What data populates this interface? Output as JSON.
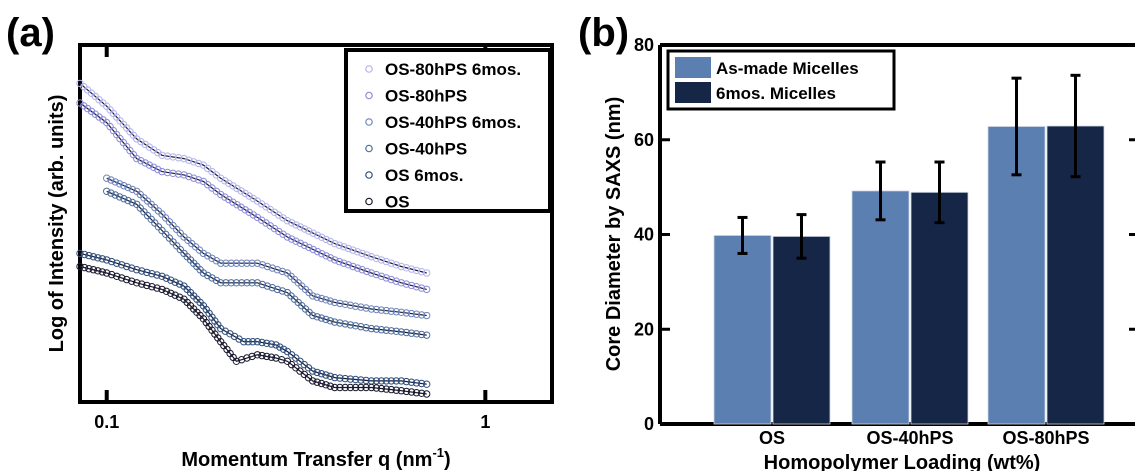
{
  "chart_data": [
    {
      "panel": "(a)",
      "type": "scatter",
      "xlabel": "Momentum Transfer q (nm",
      "xlabel_sup": "-1",
      "xlabel_close": ")",
      "ylabel": "Log of Intensity (arb. units)",
      "xscale": "log",
      "xlim": [
        0.085,
        1.5
      ],
      "ylim": [
        0,
        1
      ],
      "yticks_shown": false,
      "xticks": [
        {
          "value": 0.1,
          "label": "0.1"
        },
        {
          "value": 1,
          "label": "1"
        }
      ],
      "legend_placement": "top-right",
      "fit_line_color": "#1a1a2e",
      "series": [
        {
          "name": "OS-80hPS 6mos.",
          "color": "#b3b3ee",
          "x": [
            0.085,
            0.1,
            0.12,
            0.14,
            0.16,
            0.18,
            0.2,
            0.25,
            0.3,
            0.4,
            0.5,
            0.6,
            0.7
          ],
          "y": [
            0.95,
            0.88,
            0.78,
            0.73,
            0.72,
            0.7,
            0.66,
            0.59,
            0.53,
            0.46,
            0.42,
            0.39,
            0.37
          ]
        },
        {
          "name": "OS-80hPS",
          "color": "#8c8cdc",
          "x": [
            0.085,
            0.1,
            0.12,
            0.14,
            0.16,
            0.18,
            0.2,
            0.25,
            0.3,
            0.4,
            0.5,
            0.6,
            0.7
          ],
          "y": [
            0.89,
            0.83,
            0.72,
            0.68,
            0.67,
            0.65,
            0.61,
            0.54,
            0.48,
            0.41,
            0.37,
            0.34,
            0.32
          ]
        },
        {
          "name": "OS-40hPS 6mos.",
          "color": "#6f86bd",
          "x": [
            0.1,
            0.12,
            0.14,
            0.16,
            0.18,
            0.2,
            0.25,
            0.3,
            0.35,
            0.4,
            0.5,
            0.6,
            0.7
          ],
          "y": [
            0.66,
            0.62,
            0.55,
            0.48,
            0.43,
            0.4,
            0.4,
            0.37,
            0.3,
            0.28,
            0.26,
            0.25,
            0.24
          ]
        },
        {
          "name": "OS-40hPS",
          "color": "#4f6f9f",
          "x": [
            0.1,
            0.12,
            0.14,
            0.16,
            0.18,
            0.2,
            0.25,
            0.3,
            0.35,
            0.4,
            0.5,
            0.6,
            0.7
          ],
          "y": [
            0.62,
            0.58,
            0.5,
            0.43,
            0.37,
            0.34,
            0.34,
            0.31,
            0.24,
            0.22,
            0.2,
            0.19,
            0.18
          ]
        },
        {
          "name": "OS 6mos.",
          "color": "#2f4f7f",
          "x": [
            0.085,
            0.1,
            0.12,
            0.14,
            0.16,
            0.18,
            0.2,
            0.23,
            0.25,
            0.28,
            0.3,
            0.35,
            0.4,
            0.5,
            0.6,
            0.7
          ],
          "y": [
            0.43,
            0.41,
            0.38,
            0.36,
            0.33,
            0.27,
            0.2,
            0.16,
            0.16,
            0.15,
            0.13,
            0.07,
            0.05,
            0.04,
            0.04,
            0.03
          ]
        },
        {
          "name": "OS",
          "color": "#1a1a2e",
          "x": [
            0.085,
            0.1,
            0.12,
            0.14,
            0.16,
            0.18,
            0.2,
            0.22,
            0.25,
            0.28,
            0.3,
            0.35,
            0.4,
            0.5,
            0.6,
            0.7
          ],
          "y": [
            0.39,
            0.37,
            0.34,
            0.32,
            0.29,
            0.23,
            0.16,
            0.1,
            0.12,
            0.11,
            0.1,
            0.04,
            0.02,
            0.02,
            0.01,
            0.0
          ]
        }
      ]
    },
    {
      "panel": "(b)",
      "type": "bar",
      "xlabel": "Homopolymer Loading (wt%)",
      "ylabel": "Core Diameter by SAXS (nm)",
      "ylim": [
        0,
        80
      ],
      "yticks": [
        0,
        20,
        40,
        60,
        80
      ],
      "categories": [
        "OS",
        "OS-40hPS",
        "OS-80hPS"
      ],
      "legend_placement": "top-left",
      "series": [
        {
          "name": "As-made Micelles",
          "color": "#5b7fb0",
          "values": [
            39.8,
            49.2,
            62.8
          ],
          "errors": [
            3.8,
            6.1,
            10.2
          ]
        },
        {
          "name": "6mos. Micelles",
          "color": "#152647",
          "values": [
            39.6,
            48.9,
            62.9
          ],
          "errors": [
            4.6,
            6.4,
            10.7
          ]
        }
      ]
    }
  ]
}
